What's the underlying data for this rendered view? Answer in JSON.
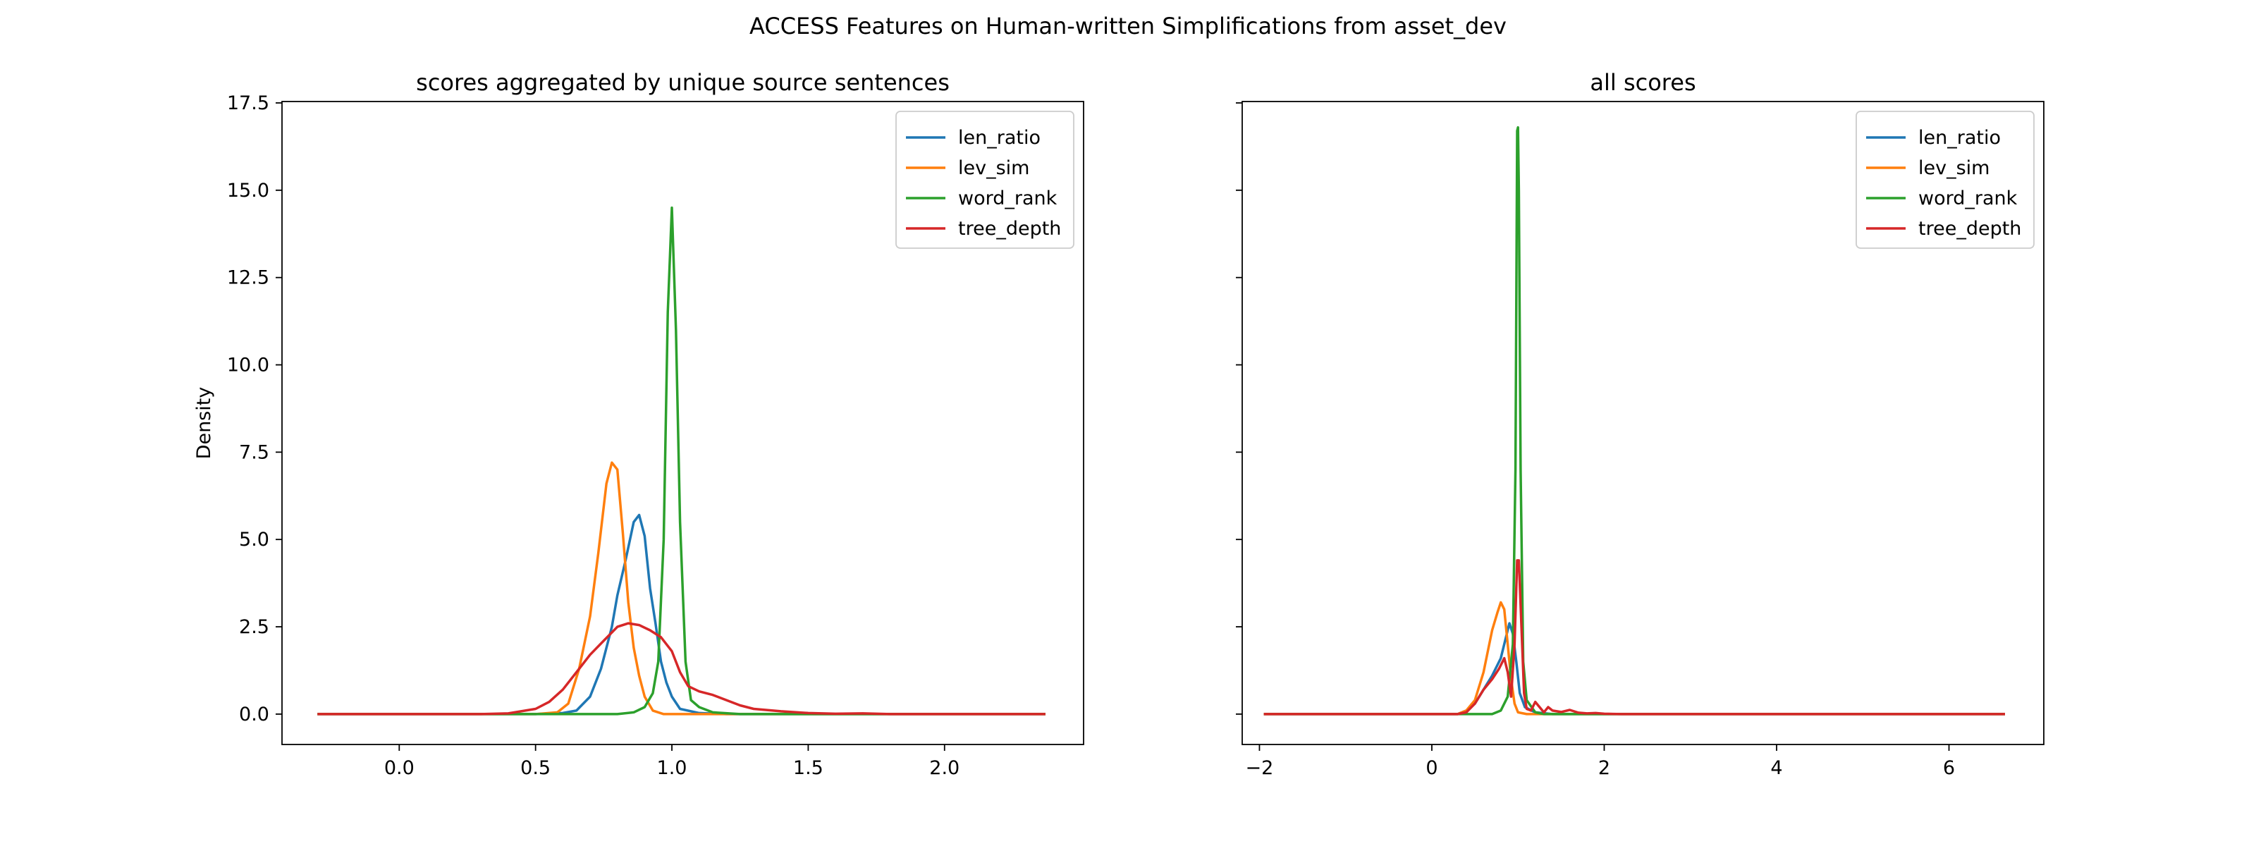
{
  "figure": {
    "title": "ACCESS Features on Human-written Simplifications from asset_dev"
  },
  "chart_data": [
    {
      "type": "line",
      "subtype": "kde-density",
      "title": "scores aggregated by unique source sentences",
      "xlabel": "",
      "ylabel": "Density",
      "xlim": [
        -0.43,
        2.51
      ],
      "ylim": [
        -0.87,
        17.54
      ],
      "xticks": [
        0.0,
        0.5,
        1.0,
        1.5,
        2.0
      ],
      "xtick_labels": [
        "0.0",
        "0.5",
        "1.0",
        "1.5",
        "2.0"
      ],
      "yticks": [
        0.0,
        2.5,
        5.0,
        7.5,
        10.0,
        12.5,
        15.0,
        17.5
      ],
      "ytick_labels": [
        "0.0",
        "2.5",
        "5.0",
        "7.5",
        "10.0",
        "12.5",
        "15.0",
        "17.5"
      ],
      "legend": {
        "placement": "upper-right"
      },
      "grid": false,
      "series": [
        {
          "name": "len_ratio",
          "color": "#1f77b4",
          "points": [
            [
              -0.3,
              0
            ],
            [
              0.5,
              0
            ],
            [
              0.6,
              0.03
            ],
            [
              0.65,
              0.1
            ],
            [
              0.7,
              0.5
            ],
            [
              0.74,
              1.3
            ],
            [
              0.78,
              2.5
            ],
            [
              0.8,
              3.4
            ],
            [
              0.83,
              4.4
            ],
            [
              0.86,
              5.5
            ],
            [
              0.88,
              5.7
            ],
            [
              0.9,
              5.1
            ],
            [
              0.92,
              3.6
            ],
            [
              0.94,
              2.6
            ],
            [
              0.96,
              1.5
            ],
            [
              0.98,
              0.9
            ],
            [
              1.0,
              0.5
            ],
            [
              1.03,
              0.15
            ],
            [
              1.1,
              0.03
            ],
            [
              1.2,
              0
            ],
            [
              2.37,
              0
            ]
          ]
        },
        {
          "name": "lev_sim",
          "color": "#ff7f0e",
          "points": [
            [
              -0.3,
              0
            ],
            [
              0.5,
              0
            ],
            [
              0.58,
              0.05
            ],
            [
              0.62,
              0.3
            ],
            [
              0.66,
              1.3
            ],
            [
              0.7,
              2.8
            ],
            [
              0.73,
              4.6
            ],
            [
              0.76,
              6.6
            ],
            [
              0.78,
              7.2
            ],
            [
              0.8,
              7.0
            ],
            [
              0.82,
              5.2
            ],
            [
              0.84,
              3.2
            ],
            [
              0.86,
              1.9
            ],
            [
              0.88,
              1.1
            ],
            [
              0.9,
              0.5
            ],
            [
              0.93,
              0.1
            ],
            [
              0.97,
              0
            ],
            [
              2.37,
              0
            ]
          ]
        },
        {
          "name": "word_rank",
          "color": "#2ca02c",
          "points": [
            [
              -0.3,
              0
            ],
            [
              0.8,
              0
            ],
            [
              0.86,
              0.05
            ],
            [
              0.9,
              0.2
            ],
            [
              0.93,
              0.6
            ],
            [
              0.95,
              1.5
            ],
            [
              0.97,
              5.0
            ],
            [
              0.985,
              11.5
            ],
            [
              1.0,
              14.5
            ],
            [
              1.015,
              11.0
            ],
            [
              1.03,
              5.5
            ],
            [
              1.05,
              1.5
            ],
            [
              1.07,
              0.4
            ],
            [
              1.1,
              0.2
            ],
            [
              1.15,
              0.05
            ],
            [
              1.25,
              0
            ],
            [
              2.37,
              0
            ]
          ]
        },
        {
          "name": "tree_depth",
          "color": "#d62728",
          "points": [
            [
              -0.3,
              0
            ],
            [
              0.3,
              0
            ],
            [
              0.4,
              0.02
            ],
            [
              0.5,
              0.15
            ],
            [
              0.55,
              0.35
            ],
            [
              0.6,
              0.7
            ],
            [
              0.65,
              1.2
            ],
            [
              0.7,
              1.7
            ],
            [
              0.75,
              2.1
            ],
            [
              0.8,
              2.5
            ],
            [
              0.84,
              2.6
            ],
            [
              0.88,
              2.55
            ],
            [
              0.92,
              2.4
            ],
            [
              0.96,
              2.2
            ],
            [
              1.0,
              1.8
            ],
            [
              1.03,
              1.2
            ],
            [
              1.06,
              0.8
            ],
            [
              1.1,
              0.65
            ],
            [
              1.15,
              0.55
            ],
            [
              1.2,
              0.4
            ],
            [
              1.25,
              0.25
            ],
            [
              1.3,
              0.15
            ],
            [
              1.4,
              0.08
            ],
            [
              1.5,
              0.03
            ],
            [
              1.6,
              0.01
            ],
            [
              1.7,
              0.02
            ],
            [
              1.8,
              0
            ],
            [
              2.37,
              0
            ]
          ]
        }
      ]
    },
    {
      "type": "line",
      "subtype": "kde-density",
      "title": "all scores",
      "xlabel": "",
      "ylabel": "",
      "xlim": [
        -2.2,
        7.1
      ],
      "ylim": [
        -0.87,
        17.54
      ],
      "xticks": [
        -2,
        0,
        2,
        4,
        6
      ],
      "xtick_labels": [
        "−2",
        "0",
        "2",
        "4",
        "6"
      ],
      "yticks": [
        0.0,
        2.5,
        5.0,
        7.5,
        10.0,
        12.5,
        15.0,
        17.5
      ],
      "ytick_labels": [],
      "sharey": true,
      "legend": {
        "placement": "upper-right"
      },
      "grid": false,
      "series": [
        {
          "name": "len_ratio",
          "color": "#1f77b4",
          "points": [
            [
              -1.95,
              0
            ],
            [
              0.3,
              0
            ],
            [
              0.4,
              0.1
            ],
            [
              0.5,
              0.3
            ],
            [
              0.6,
              0.7
            ],
            [
              0.7,
              1.1
            ],
            [
              0.8,
              1.6
            ],
            [
              0.86,
              2.2
            ],
            [
              0.9,
              2.6
            ],
            [
              0.94,
              2.3
            ],
            [
              0.98,
              1.5
            ],
            [
              1.02,
              0.6
            ],
            [
              1.08,
              0.2
            ],
            [
              1.2,
              0.05
            ],
            [
              1.4,
              0
            ],
            [
              6.65,
              0
            ]
          ]
        },
        {
          "name": "lev_sim",
          "color": "#ff7f0e",
          "points": [
            [
              -1.95,
              0
            ],
            [
              0.3,
              0
            ],
            [
              0.4,
              0.1
            ],
            [
              0.5,
              0.4
            ],
            [
              0.6,
              1.2
            ],
            [
              0.65,
              1.8
            ],
            [
              0.7,
              2.4
            ],
            [
              0.76,
              2.9
            ],
            [
              0.8,
              3.2
            ],
            [
              0.84,
              3.0
            ],
            [
              0.88,
              2.0
            ],
            [
              0.92,
              1.0
            ],
            [
              0.96,
              0.3
            ],
            [
              1.0,
              0.05
            ],
            [
              1.1,
              0
            ],
            [
              6.65,
              0
            ]
          ]
        },
        {
          "name": "word_rank",
          "color": "#2ca02c",
          "points": [
            [
              -1.95,
              0
            ],
            [
              0.7,
              0
            ],
            [
              0.8,
              0.1
            ],
            [
              0.88,
              0.5
            ],
            [
              0.94,
              2.0
            ],
            [
              0.97,
              7.0
            ],
            [
              0.99,
              16.7
            ],
            [
              1.0,
              16.8
            ],
            [
              1.01,
              15.0
            ],
            [
              1.03,
              7.0
            ],
            [
              1.06,
              1.5
            ],
            [
              1.1,
              0.4
            ],
            [
              1.2,
              0.05
            ],
            [
              1.3,
              0
            ],
            [
              6.65,
              0
            ]
          ]
        },
        {
          "name": "tree_depth",
          "color": "#d62728",
          "points": [
            [
              -1.95,
              0
            ],
            [
              0.3,
              0
            ],
            [
              0.4,
              0.05
            ],
            [
              0.5,
              0.3
            ],
            [
              0.6,
              0.7
            ],
            [
              0.7,
              1.0
            ],
            [
              0.78,
              1.3
            ],
            [
              0.84,
              1.6
            ],
            [
              0.88,
              1.2
            ],
            [
              0.92,
              0.5
            ],
            [
              0.96,
              2.0
            ],
            [
              0.99,
              4.4
            ],
            [
              1.01,
              4.4
            ],
            [
              1.04,
              2.5
            ],
            [
              1.07,
              0.6
            ],
            [
              1.1,
              0.15
            ],
            [
              1.15,
              0.1
            ],
            [
              1.2,
              0.35
            ],
            [
              1.25,
              0.2
            ],
            [
              1.3,
              0.05
            ],
            [
              1.35,
              0.2
            ],
            [
              1.4,
              0.1
            ],
            [
              1.5,
              0.06
            ],
            [
              1.6,
              0.12
            ],
            [
              1.7,
              0.04
            ],
            [
              1.8,
              0.02
            ],
            [
              1.9,
              0.03
            ],
            [
              2.0,
              0.01
            ],
            [
              2.2,
              0
            ],
            [
              6.65,
              0
            ]
          ]
        }
      ]
    }
  ]
}
